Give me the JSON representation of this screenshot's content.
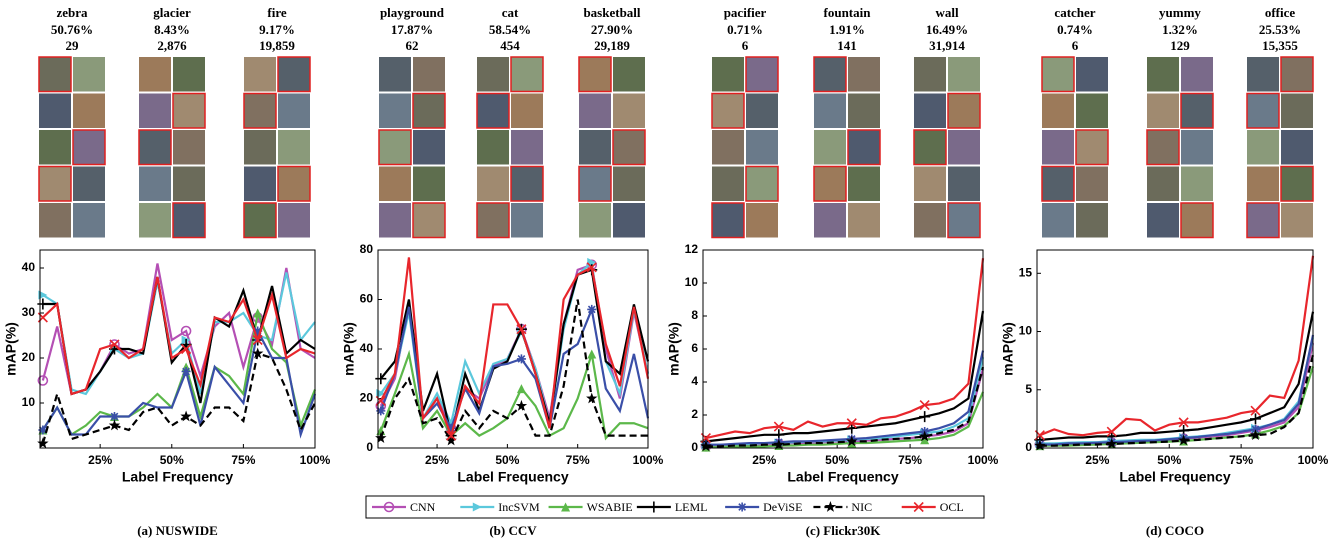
{
  "chart_data": [
    {
      "type": "line",
      "caption": "(a) NUSWIDE",
      "xlabel": "Label Frequency",
      "ylabel": "mAP(%)",
      "label_stats": [
        {
          "name": "zebra",
          "percent": "50.76%",
          "count": "29"
        },
        {
          "name": "glacier",
          "percent": "8.43%",
          "count": "2,876"
        },
        {
          "name": "fire",
          "percent": "9.17%",
          "count": "19,859"
        }
      ],
      "x": [
        5,
        10,
        15,
        20,
        25,
        30,
        35,
        40,
        45,
        50,
        55,
        60,
        65,
        70,
        75,
        80,
        85,
        90,
        95,
        100
      ],
      "xlim": [
        4,
        100
      ],
      "xticks": [
        {
          "value": 25,
          "label": "25%"
        },
        {
          "value": 50,
          "label": "50%"
        },
        {
          "value": 75,
          "label": "75%"
        },
        {
          "value": 100,
          "label": "100%"
        }
      ],
      "ylim": [
        0,
        44
      ],
      "yticks": [
        10,
        20,
        30,
        40
      ],
      "series": [
        {
          "values": [
            15,
            27,
            12,
            13,
            17,
            23,
            21,
            22,
            41,
            24,
            26,
            16,
            27,
            30,
            18,
            29,
            23,
            40,
            22,
            20
          ]
        },
        {
          "values": [
            34,
            32,
            13,
            12,
            17,
            22,
            20,
            21,
            37,
            21,
            24,
            12,
            28,
            28,
            30,
            25,
            24,
            39,
            24,
            28
          ]
        },
        {
          "values": [
            4,
            9,
            3,
            5,
            8,
            7,
            7,
            9,
            12,
            9,
            18,
            7,
            18,
            16,
            12,
            30,
            22,
            19,
            5,
            13
          ]
        },
        {
          "values": [
            32,
            32,
            12,
            13,
            17,
            22,
            22,
            21,
            38,
            19,
            23,
            10,
            29,
            27,
            35,
            24,
            36,
            21,
            24,
            22
          ]
        },
        {
          "values": [
            4,
            9,
            3,
            3,
            7,
            7,
            7,
            10,
            9,
            9,
            17,
            5,
            18,
            14,
            10,
            26,
            20,
            20,
            3,
            12
          ]
        },
        {
          "values": [
            1,
            12,
            2,
            3,
            4,
            5,
            4,
            8,
            9,
            5,
            7,
            5,
            9,
            9,
            6,
            21,
            20,
            13,
            4,
            10
          ]
        },
        {
          "values": [
            29,
            32,
            12,
            13,
            22,
            23,
            20,
            22,
            38,
            20,
            22,
            14,
            29,
            28,
            33,
            24,
            34,
            20,
            22,
            21
          ]
        }
      ]
    },
    {
      "type": "line",
      "caption": "(b) CCV",
      "xlabel": "Label Frequency",
      "ylabel": "mAP(%)",
      "label_stats": [
        {
          "name": "playground",
          "percent": "17.87%",
          "count": "62"
        },
        {
          "name": "cat",
          "percent": "58.54%",
          "count": "454"
        },
        {
          "name": "basketball",
          "percent": "27.90%",
          "count": "29,189"
        }
      ],
      "x": [
        5,
        10,
        15,
        20,
        25,
        30,
        35,
        40,
        45,
        50,
        55,
        60,
        65,
        70,
        75,
        80,
        85,
        90,
        95,
        100
      ],
      "xlim": [
        4,
        100
      ],
      "xticks": [
        {
          "value": 25,
          "label": "25%"
        },
        {
          "value": 50,
          "label": "50%"
        },
        {
          "value": 75,
          "label": "75%"
        },
        {
          "value": 100,
          "label": "100%"
        }
      ],
      "ylim": [
        0,
        80
      ],
      "yticks": [
        0,
        20,
        40,
        60,
        80
      ],
      "series": [
        {
          "values": [
            17,
            28,
            58,
            12,
            20,
            8,
            24,
            20,
            33,
            36,
            48,
            32,
            12,
            50,
            72,
            74,
            40,
            20,
            55,
            30
          ]
        },
        {
          "values": [
            22,
            30,
            55,
            12,
            22,
            10,
            35,
            22,
            34,
            36,
            47,
            32,
            10,
            48,
            70,
            75,
            35,
            22,
            56,
            30
          ]
        },
        {
          "values": [
            7,
            22,
            38,
            8,
            15,
            5,
            10,
            5,
            8,
            12,
            24,
            17,
            5,
            8,
            20,
            38,
            4,
            10,
            10,
            8
          ]
        },
        {
          "values": [
            28,
            35,
            60,
            15,
            30,
            5,
            30,
            15,
            32,
            35,
            48,
            30,
            10,
            50,
            70,
            72,
            35,
            30,
            58,
            35
          ]
        },
        {
          "values": [
            15,
            30,
            57,
            12,
            18,
            8,
            24,
            14,
            33,
            34,
            36,
            28,
            8,
            38,
            42,
            56,
            24,
            15,
            38,
            12
          ]
        },
        {
          "values": [
            4,
            20,
            28,
            10,
            12,
            3,
            15,
            8,
            15,
            12,
            17,
            5,
            5,
            25,
            60,
            20,
            5,
            5,
            5,
            5
          ]
        },
        {
          "values": [
            19,
            30,
            77,
            12,
            20,
            5,
            25,
            18,
            58,
            58,
            48,
            30,
            8,
            60,
            70,
            73,
            42,
            25,
            57,
            28
          ]
        }
      ]
    },
    {
      "type": "line",
      "caption": "(c) Flickr30K",
      "xlabel": "Label Frequency",
      "ylabel": "mAP(%)",
      "label_stats": [
        {
          "name": "pacifier",
          "percent": "0.71%",
          "count": "6"
        },
        {
          "name": "fountain",
          "percent": "1.91%",
          "count": "141"
        },
        {
          "name": "wall",
          "percent": "16.49%",
          "count": "31,914"
        }
      ],
      "x": [
        5,
        10,
        15,
        20,
        25,
        30,
        35,
        40,
        45,
        50,
        55,
        60,
        65,
        70,
        75,
        80,
        85,
        90,
        95,
        100
      ],
      "xlim": [
        4,
        100
      ],
      "xticks": [
        {
          "value": 25,
          "label": "25%"
        },
        {
          "value": 50,
          "label": "50%"
        },
        {
          "value": 75,
          "label": "75%"
        },
        {
          "value": 100,
          "label": "100%"
        }
      ],
      "ylim": [
        0,
        12
      ],
      "yticks": [
        0,
        2,
        4,
        6,
        8,
        10,
        12
      ],
      "series": [
        {
          "values": [
            0.1,
            0.1,
            0.15,
            0.2,
            0.2,
            0.25,
            0.3,
            0.3,
            0.35,
            0.4,
            0.4,
            0.45,
            0.5,
            0.55,
            0.6,
            0.7,
            0.8,
            1.0,
            1.5,
            4.8
          ]
        },
        {
          "values": [
            0.2,
            0.2,
            0.2,
            0.25,
            0.3,
            0.3,
            0.35,
            0.4,
            0.4,
            0.45,
            0.5,
            0.55,
            0.6,
            0.7,
            0.8,
            0.9,
            1.0,
            1.3,
            1.8,
            5.5
          ]
        },
        {
          "values": [
            0.05,
            0.05,
            0.1,
            0.1,
            0.1,
            0.15,
            0.15,
            0.2,
            0.2,
            0.25,
            0.3,
            0.3,
            0.35,
            0.4,
            0.45,
            0.5,
            0.6,
            0.8,
            1.3,
            3.4
          ]
        },
        {
          "values": [
            0.4,
            0.5,
            0.6,
            0.7,
            0.8,
            0.8,
            0.9,
            0.9,
            1.0,
            1.1,
            1.2,
            1.3,
            1.4,
            1.5,
            1.7,
            1.9,
            2.1,
            2.4,
            3.0,
            8.3
          ]
        },
        {
          "values": [
            0.2,
            0.2,
            0.25,
            0.3,
            0.3,
            0.35,
            0.4,
            0.4,
            0.45,
            0.5,
            0.55,
            0.6,
            0.7,
            0.8,
            0.9,
            1.0,
            1.2,
            1.5,
            2.2,
            5.9
          ]
        },
        {
          "values": [
            0.1,
            0.1,
            0.15,
            0.15,
            0.2,
            0.2,
            0.25,
            0.3,
            0.3,
            0.35,
            0.4,
            0.4,
            0.5,
            0.55,
            0.6,
            0.7,
            0.9,
            1.1,
            1.6,
            4.9
          ]
        },
        {
          "values": [
            0.6,
            0.8,
            1.0,
            0.9,
            1.2,
            1.3,
            1.1,
            1.6,
            1.3,
            1.5,
            1.5,
            1.4,
            1.8,
            1.9,
            2.2,
            2.6,
            2.7,
            3.0,
            3.9,
            11.5
          ]
        }
      ]
    },
    {
      "type": "line",
      "caption": "(d) COCO",
      "xlabel": "Label Frequency",
      "ylabel": "mAP(%)",
      "label_stats": [
        {
          "name": "catcher",
          "percent": "0.74%",
          "count": "6"
        },
        {
          "name": "yummy",
          "percent": "1.32%",
          "count": "129"
        },
        {
          "name": "office",
          "percent": "25.53%",
          "count": "15,355"
        }
      ],
      "x": [
        5,
        10,
        15,
        20,
        25,
        30,
        35,
        40,
        45,
        50,
        55,
        60,
        65,
        70,
        75,
        80,
        85,
        90,
        95,
        100
      ],
      "xlim": [
        4,
        100
      ],
      "xticks": [
        {
          "value": 25,
          "label": "25%"
        },
        {
          "value": 50,
          "label": "50%"
        },
        {
          "value": 75,
          "label": "75%"
        },
        {
          "value": 100,
          "label": "100%"
        }
      ],
      "ylim": [
        0,
        17
      ],
      "yticks": [
        0,
        5,
        10,
        15
      ],
      "series": [
        {
          "values": [
            0.3,
            0.3,
            0.35,
            0.4,
            0.4,
            0.45,
            0.5,
            0.6,
            0.6,
            0.7,
            0.8,
            0.9,
            1.0,
            1.1,
            1.3,
            1.5,
            1.8,
            2.2,
            3.5,
            9
          ]
        },
        {
          "values": [
            0.4,
            0.4,
            0.45,
            0.5,
            0.5,
            0.6,
            0.65,
            0.7,
            0.7,
            0.8,
            0.9,
            1.0,
            1.1,
            1.3,
            1.5,
            1.7,
            2.0,
            2.5,
            4,
            9.5
          ]
        },
        {
          "values": [
            0.2,
            0.2,
            0.2,
            0.25,
            0.3,
            0.35,
            0.4,
            0.45,
            0.5,
            0.55,
            0.6,
            0.7,
            0.8,
            0.9,
            1.0,
            1.2,
            1.5,
            1.9,
            3,
            7
          ]
        },
        {
          "values": [
            0.7,
            0.8,
            0.9,
            0.9,
            1.0,
            1.0,
            1.1,
            1.3,
            1.3,
            1.4,
            1.5,
            1.6,
            1.8,
            2.0,
            2.2,
            2.5,
            3.0,
            3.5,
            5.5,
            11.7
          ]
        },
        {
          "values": [
            0.3,
            0.3,
            0.4,
            0.4,
            0.45,
            0.5,
            0.55,
            0.6,
            0.65,
            0.75,
            0.85,
            0.95,
            1.1,
            1.2,
            1.4,
            1.6,
            2.0,
            2.4,
            3.8,
            9.7
          ]
        },
        {
          "values": [
            0.2,
            0.2,
            0.25,
            0.3,
            0.3,
            0.35,
            0.4,
            0.45,
            0.5,
            0.55,
            0.65,
            0.7,
            0.8,
            0.9,
            1.0,
            1.1,
            1.2,
            1.8,
            3,
            8
          ]
        },
        {
          "values": [
            1.1,
            1.6,
            1.2,
            1.1,
            1.3,
            1.4,
            2.5,
            2.4,
            1.5,
            2.0,
            2.2,
            2.2,
            2.4,
            2.6,
            3.0,
            3.2,
            4.5,
            4.3,
            7.5,
            16.5
          ]
        }
      ]
    }
  ],
  "legend": [
    {
      "name": "CNN",
      "color": "#b44fb4",
      "marker": "o",
      "dash": false
    },
    {
      "name": "IncSVM",
      "color": "#5bc8dc",
      "marker": ">",
      "dash": false
    },
    {
      "name": "WSABIE",
      "color": "#5cb84a",
      "marker": "^",
      "dash": false
    },
    {
      "name": "LEML",
      "color": "#000000",
      "marker": "+",
      "dash": false
    },
    {
      "name": "DeViSE",
      "color": "#3a4fa8",
      "marker": "*",
      "dash": false
    },
    {
      "name": "NIC",
      "color": "#000000",
      "marker": "star",
      "dash": true
    },
    {
      "name": "OCL",
      "color": "#e8262c",
      "marker": "x",
      "dash": false
    }
  ],
  "marker_every": 5
}
